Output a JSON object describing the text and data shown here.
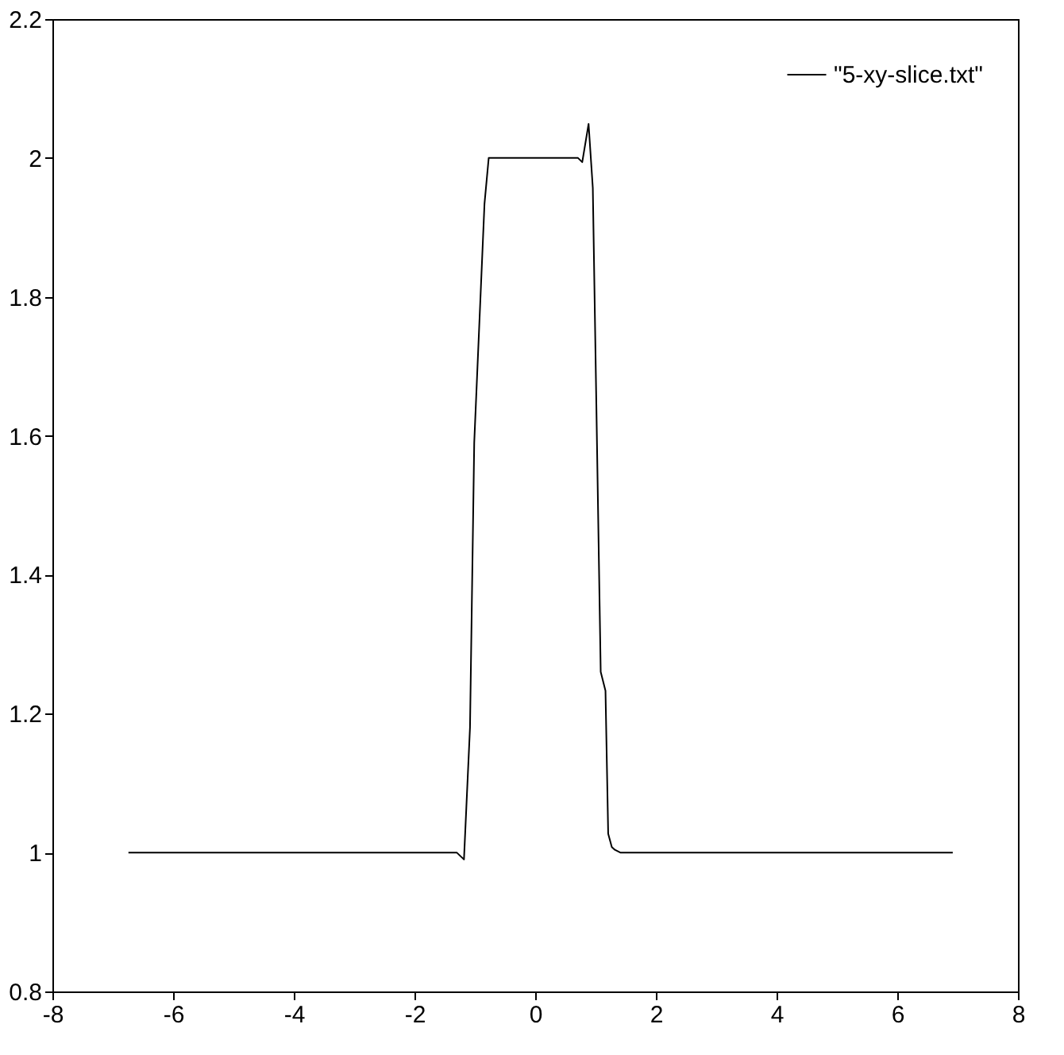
{
  "chart_data": {
    "type": "line",
    "legend": "top right",
    "grid": false,
    "xlim": [
      -8,
      8
    ],
    "ylim": [
      0.8,
      2.2
    ],
    "xticks": [
      -8,
      -6,
      -4,
      -2,
      0,
      2,
      4,
      6,
      8
    ],
    "yticks": [
      0.8,
      1,
      1.2,
      1.4,
      1.6,
      1.8,
      2,
      2.2
    ],
    "series": [
      {
        "name": "\"5-xy-slice.txt\"",
        "color": "#000000",
        "x": [
          -6.74,
          -1.46,
          -1.3,
          -1.18,
          -1.08,
          -1.01,
          -0.84,
          -0.77,
          0.71,
          0.78,
          0.885,
          0.955,
          1.086,
          1.165,
          1.21,
          1.27,
          1.32,
          1.41,
          6.92
        ],
        "values": [
          1.0,
          1.0,
          1.0,
          0.99,
          1.18,
          1.59,
          1.934,
          2.0,
          2.0,
          1.994,
          2.049,
          1.957,
          1.26,
          1.233,
          1.027,
          1.008,
          1.004,
          1.0,
          1.0
        ]
      }
    ]
  }
}
